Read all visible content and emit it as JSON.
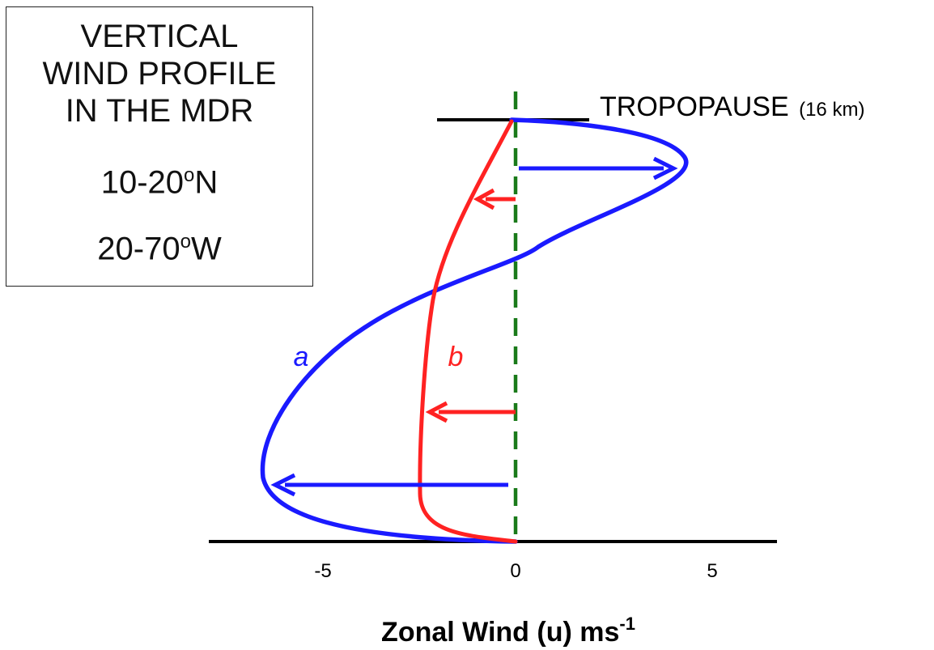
{
  "panel": {
    "lines": [
      "VERTICAL",
      "WIND PROFILE",
      "IN THE MDR"
    ],
    "lat_range": "10-20",
    "lat_deg": "o",
    "lat_hemi": "N",
    "lon_range": "20-70",
    "lon_deg": "o",
    "lon_hemi": "W"
  },
  "tropopause": {
    "label": "TROPOPAUSE",
    "height": "(16 km)"
  },
  "curves": {
    "a": {
      "label": "a",
      "color": "#1a1aff"
    },
    "b": {
      "label": "b",
      "color": "#ff2222"
    }
  },
  "axis": {
    "ticks": [
      "-5",
      "0",
      "5"
    ],
    "xlabel": "Zonal Wind (u) ms",
    "xlabel_sup": "-1"
  },
  "colors": {
    "zero_line": "#1a7a1a",
    "axis": "#000000"
  }
}
